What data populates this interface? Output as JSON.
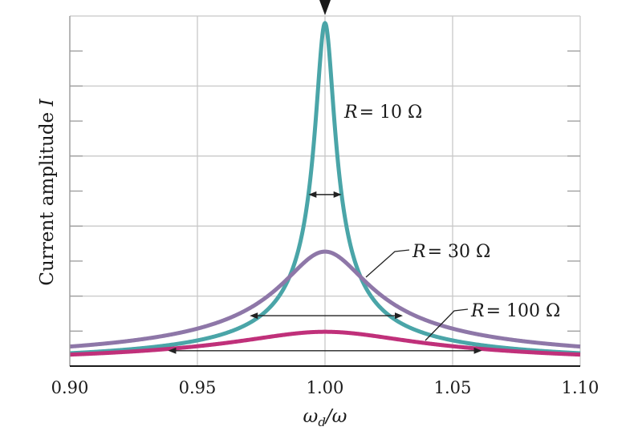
{
  "chart_data": {
    "type": "line",
    "xlabel": "ω_d/ω",
    "xlabel_parts": {
      "base": "ω",
      "sub": "d",
      "rest": "/ω"
    },
    "ylabel": "Current amplitude I",
    "ylabel_parts": {
      "text": "Current amplitude ",
      "symbol": "I"
    },
    "xlim": [
      0.9,
      1.1
    ],
    "ylim": [
      0,
      1.0
    ],
    "x_ticks": [
      0.9,
      0.95,
      1.0,
      1.05,
      1.1
    ],
    "x_tick_labels": [
      "0.90",
      "0.95",
      "1.00",
      "1.05",
      "1.10"
    ],
    "y_gridlines": 5,
    "y_minor_ticks": 10,
    "grid": true,
    "resonance_marker_x": 1.0,
    "series": [
      {
        "name": "R = 10 Ω",
        "label_parts": {
          "var": "R",
          "value": "= 10 Ω"
        },
        "resistance": 10,
        "color": "#4aa5a8",
        "peak": 0.98,
        "fwhm_arrow": [
          0.9935,
          1.0065
        ]
      },
      {
        "name": "R = 30 Ω",
        "label_parts": {
          "var": "R",
          "value": "= 30 Ω"
        },
        "resistance": 30,
        "color": "#8e77a8",
        "peak": 0.327,
        "fwhm_arrow": [
          0.9705,
          1.0305
        ]
      },
      {
        "name": "R = 100 Ω",
        "label_parts": {
          "var": "R",
          "value": "= 100 Ω"
        },
        "resistance": 100,
        "color": "#c0307a",
        "peak": 0.098,
        "fwhm_arrow": [
          0.9385,
          1.0615
        ]
      }
    ]
  }
}
